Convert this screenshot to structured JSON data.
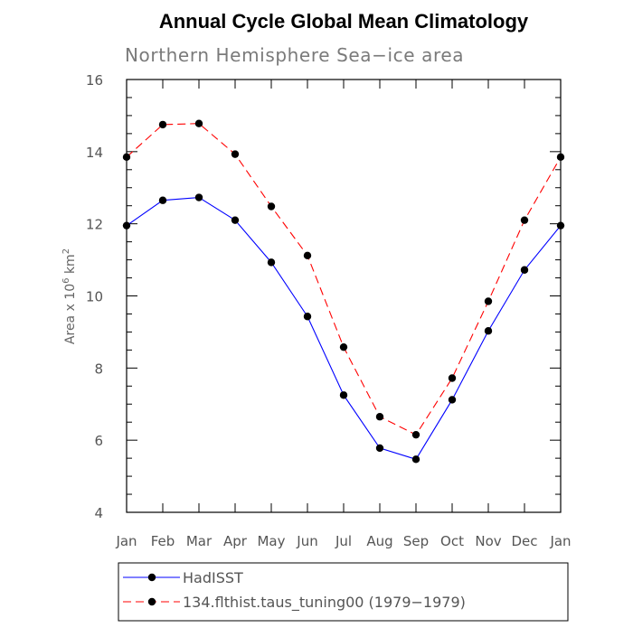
{
  "chart_data": {
    "type": "line",
    "title": "Annual Cycle Global Mean Climatology",
    "subtitle": "Northern Hemisphere Sea−ice area",
    "ylabel_prefix": "Area x 10",
    "ylabel_exp1": "6",
    "ylabel_mid": " km",
    "ylabel_exp2": "2",
    "xlabel": "",
    "categories": [
      "Jan",
      "Feb",
      "Mar",
      "Apr",
      "May",
      "Jun",
      "Jul",
      "Aug",
      "Sep",
      "Oct",
      "Nov",
      "Dec",
      "Jan"
    ],
    "ylim": [
      4,
      16
    ],
    "yticks": [
      4,
      6,
      8,
      10,
      12,
      14,
      16
    ],
    "grid": false,
    "series": [
      {
        "name": "HadISST",
        "color": "#0000ff",
        "dashed": false,
        "values": [
          11.95,
          12.65,
          12.73,
          12.1,
          10.93,
          9.43,
          7.25,
          5.78,
          5.47,
          7.12,
          9.03,
          10.72,
          11.95
        ]
      },
      {
        "name": "134.flthist.taus_tuning00 (1979−1979)",
        "color": "#ff0000",
        "dashed": true,
        "values": [
          13.85,
          14.75,
          14.78,
          13.93,
          12.48,
          11.12,
          8.58,
          6.65,
          6.15,
          7.72,
          9.85,
          12.1,
          13.85
        ]
      }
    ],
    "marker_color": "#000000",
    "legend_position": "bottom"
  }
}
